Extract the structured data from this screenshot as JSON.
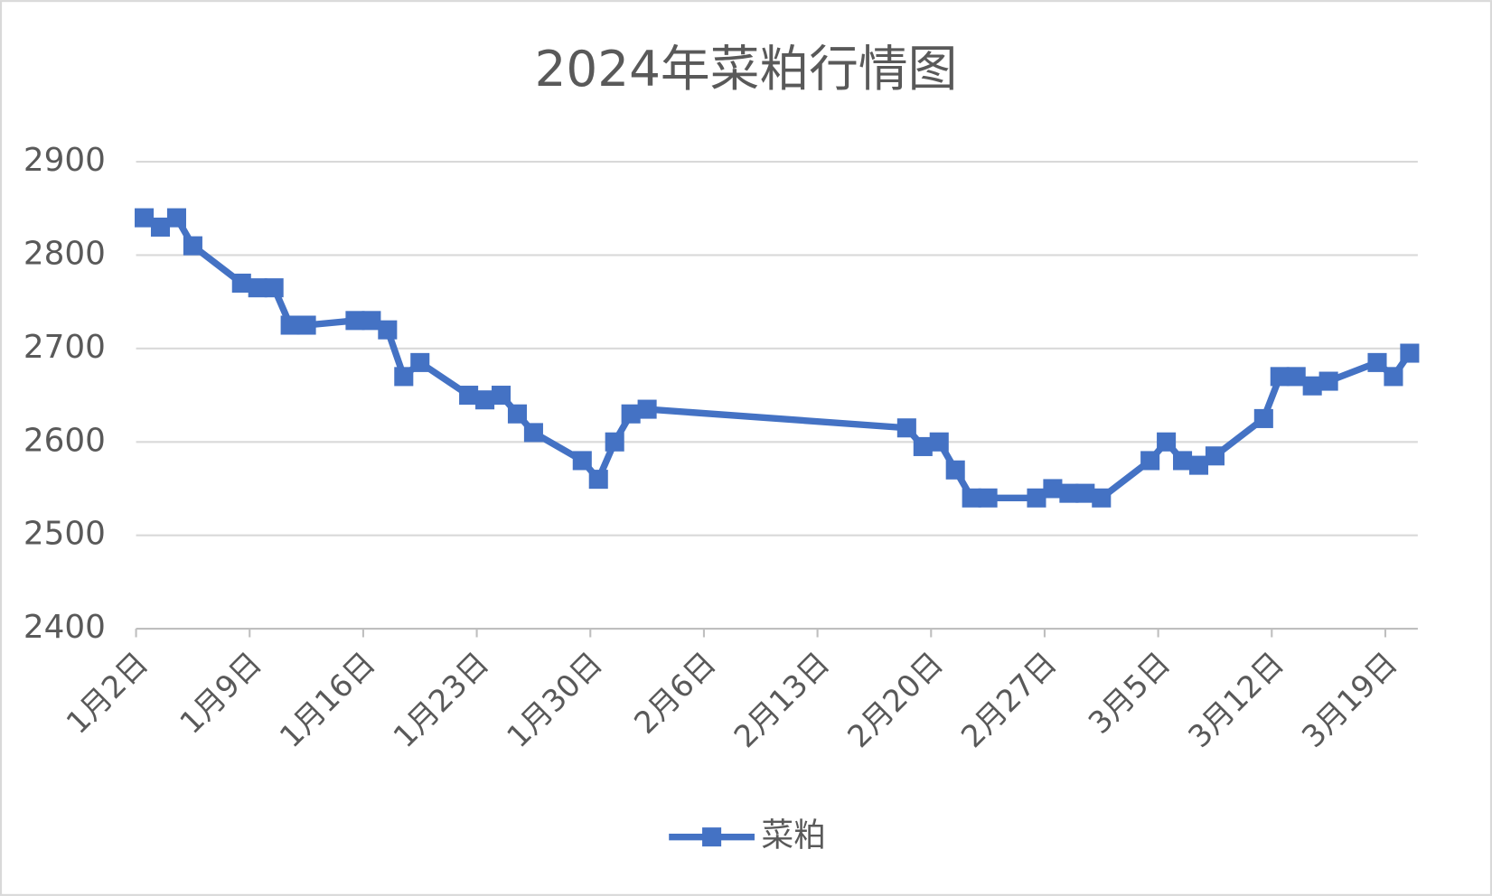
{
  "chart_data": {
    "type": "line",
    "title": "2024年菜粕行情图",
    "x": [
      "2024-01-02",
      "2024-01-03",
      "2024-01-04",
      "2024-01-05",
      "2024-01-08",
      "2024-01-09",
      "2024-01-10",
      "2024-01-11",
      "2024-01-12",
      "2024-01-15",
      "2024-01-16",
      "2024-01-17",
      "2024-01-18",
      "2024-01-19",
      "2024-01-22",
      "2024-01-23",
      "2024-01-24",
      "2024-01-25",
      "2024-01-26",
      "2024-01-29",
      "2024-01-30",
      "2024-01-31",
      "2024-02-01",
      "2024-02-02",
      "2024-02-18",
      "2024-02-19",
      "2024-02-20",
      "2024-02-21",
      "2024-02-22",
      "2024-02-23",
      "2024-02-26",
      "2024-02-27",
      "2024-02-28",
      "2024-02-29",
      "2024-03-01",
      "2024-03-04",
      "2024-03-05",
      "2024-03-06",
      "2024-03-07",
      "2024-03-08",
      "2024-03-11",
      "2024-03-12",
      "2024-03-13",
      "2024-03-14",
      "2024-03-15",
      "2024-03-18",
      "2024-03-19",
      "2024-03-20"
    ],
    "series": [
      {
        "name": "菜粕",
        "color": "#4472c4",
        "values": [
          2840,
          2830,
          2840,
          2810,
          2770,
          2765,
          2765,
          2725,
          2725,
          2730,
          2730,
          2720,
          2670,
          2685,
          2650,
          2645,
          2650,
          2630,
          2610,
          2580,
          2560,
          2600,
          2630,
          2635,
          2615,
          2595,
          2600,
          2570,
          2540,
          2540,
          2540,
          2550,
          2545,
          2545,
          2540,
          2580,
          2600,
          2580,
          2575,
          2585,
          2625,
          2670,
          2670,
          2660,
          2665,
          2685,
          2670,
          2695
        ]
      }
    ],
    "xlim": [
      "2024-01-02",
      "2024-03-21"
    ],
    "xticks": [
      {
        "value": "2024-01-02",
        "label": "1月2日"
      },
      {
        "value": "2024-01-09",
        "label": "1月9日"
      },
      {
        "value": "2024-01-16",
        "label": "1月16日"
      },
      {
        "value": "2024-01-23",
        "label": "1月23日"
      },
      {
        "value": "2024-01-30",
        "label": "1月30日"
      },
      {
        "value": "2024-02-06",
        "label": "2月6日"
      },
      {
        "value": "2024-02-13",
        "label": "2月13日"
      },
      {
        "value": "2024-02-20",
        "label": "2月20日"
      },
      {
        "value": "2024-02-27",
        "label": "2月27日"
      },
      {
        "value": "2024-03-05",
        "label": "3月5日"
      },
      {
        "value": "2024-03-12",
        "label": "3月12日"
      },
      {
        "value": "2024-03-19",
        "label": "3月19日"
      }
    ],
    "ylim": [
      2400,
      2900
    ],
    "yticks": [
      2400,
      2500,
      2600,
      2700,
      2800,
      2900
    ],
    "grid": true,
    "legend": "bottom"
  }
}
